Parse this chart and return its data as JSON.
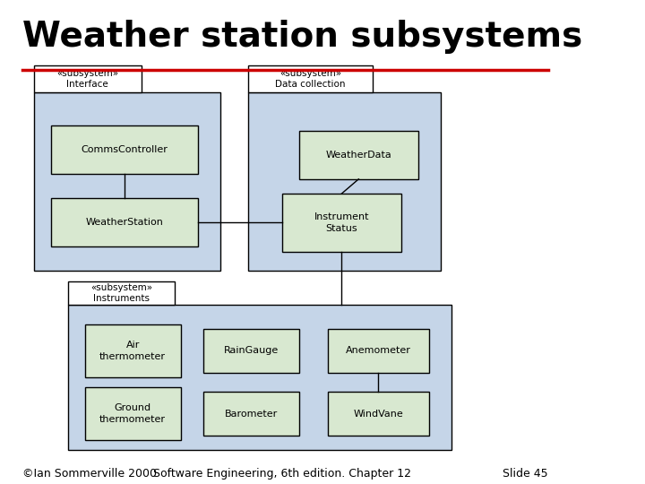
{
  "title": "Weather station subsystems",
  "title_color": "#000000",
  "title_fontsize": 28,
  "title_bold": true,
  "separator_color": "#cc0000",
  "bg_color": "#ffffff",
  "footer_left": "©Ian Sommerville 2000",
  "footer_center": "Software Engineering, 6th edition. Chapter 12",
  "footer_right": "Slide 45",
  "footer_fontsize": 9,
  "subsystem_fill": "#c5d5e8",
  "subsystem_edge": "#000000",
  "class_fill": "#d8e8d0",
  "class_edge": "#000000",
  "line_color": "#000000",
  "tab_fill": "#ffffff"
}
